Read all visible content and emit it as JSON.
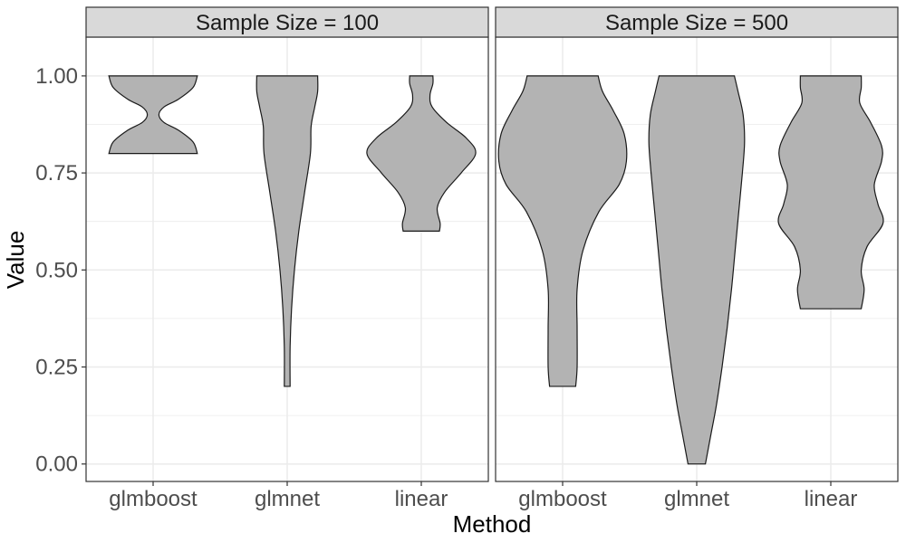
{
  "chart_data": {
    "type": "violin",
    "title": "",
    "xlabel": "Method",
    "ylabel": "Value",
    "ylim": [
      -0.045,
      1.1
    ],
    "yticks": [
      "0.00",
      "0.25",
      "0.50",
      "0.75",
      "1.00"
    ],
    "grid": true,
    "facet_label_prefix": "Sample Size = ",
    "categories": [
      "glmboost",
      "glmnet",
      "linear"
    ],
    "colors": {
      "fill": "#b3b3b3",
      "stroke": "#1a1a1a",
      "strip": "#d9d9d9",
      "grid": "#ebebeb",
      "panel_border": "#333333"
    },
    "facets": [
      {
        "label": "Sample Size = 100",
        "violins": [
          {
            "category": "glmboost",
            "profile": [
              [
                0.8,
                0.61
              ],
              [
                0.83,
                0.55
              ],
              [
                0.86,
                0.35
              ],
              [
                0.88,
                0.15
              ],
              [
                0.9,
                0.08
              ],
              [
                0.92,
                0.15
              ],
              [
                0.94,
                0.35
              ],
              [
                0.97,
                0.55
              ],
              [
                1.0,
                0.61
              ]
            ]
          },
          {
            "category": "glmnet",
            "profile": [
              [
                0.2,
                0.04
              ],
              [
                0.3,
                0.04
              ],
              [
                0.4,
                0.06
              ],
              [
                0.5,
                0.1
              ],
              [
                0.6,
                0.16
              ],
              [
                0.7,
                0.24
              ],
              [
                0.8,
                0.32
              ],
              [
                0.87,
                0.33
              ],
              [
                0.92,
                0.38
              ],
              [
                0.96,
                0.42
              ],
              [
                1.0,
                0.42
              ]
            ]
          },
          {
            "category": "linear",
            "profile": [
              [
                0.6,
                0.25
              ],
              [
                0.62,
                0.26
              ],
              [
                0.66,
                0.22
              ],
              [
                0.7,
                0.32
              ],
              [
                0.75,
                0.55
              ],
              [
                0.8,
                0.75
              ],
              [
                0.84,
                0.62
              ],
              [
                0.88,
                0.35
              ],
              [
                0.92,
                0.15
              ],
              [
                0.95,
                0.12
              ],
              [
                0.98,
                0.16
              ],
              [
                1.0,
                0.16
              ]
            ]
          }
        ]
      },
      {
        "label": "Sample Size = 500",
        "violins": [
          {
            "category": "glmboost",
            "profile": [
              [
                0.2,
                0.18
              ],
              [
                0.25,
                0.2
              ],
              [
                0.35,
                0.2
              ],
              [
                0.45,
                0.2
              ],
              [
                0.55,
                0.28
              ],
              [
                0.65,
                0.5
              ],
              [
                0.72,
                0.78
              ],
              [
                0.78,
                0.88
              ],
              [
                0.85,
                0.85
              ],
              [
                0.91,
                0.7
              ],
              [
                0.96,
                0.55
              ],
              [
                1.0,
                0.49
              ]
            ]
          },
          {
            "category": "glmnet",
            "profile": [
              [
                0.0,
                0.12
              ],
              [
                0.08,
                0.2
              ],
              [
                0.15,
                0.27
              ],
              [
                0.25,
                0.35
              ],
              [
                0.35,
                0.42
              ],
              [
                0.45,
                0.48
              ],
              [
                0.55,
                0.53
              ],
              [
                0.65,
                0.58
              ],
              [
                0.75,
                0.63
              ],
              [
                0.83,
                0.66
              ],
              [
                0.9,
                0.64
              ],
              [
                0.96,
                0.57
              ],
              [
                1.0,
                0.52
              ]
            ]
          },
          {
            "category": "linear",
            "profile": [
              [
                0.4,
                0.42
              ],
              [
                0.45,
                0.46
              ],
              [
                0.5,
                0.42
              ],
              [
                0.56,
                0.5
              ],
              [
                0.62,
                0.72
              ],
              [
                0.67,
                0.65
              ],
              [
                0.72,
                0.6
              ],
              [
                0.78,
                0.7
              ],
              [
                0.82,
                0.7
              ],
              [
                0.88,
                0.55
              ],
              [
                0.93,
                0.4
              ],
              [
                0.97,
                0.42
              ],
              [
                1.0,
                0.42
              ]
            ]
          }
        ]
      }
    ]
  }
}
